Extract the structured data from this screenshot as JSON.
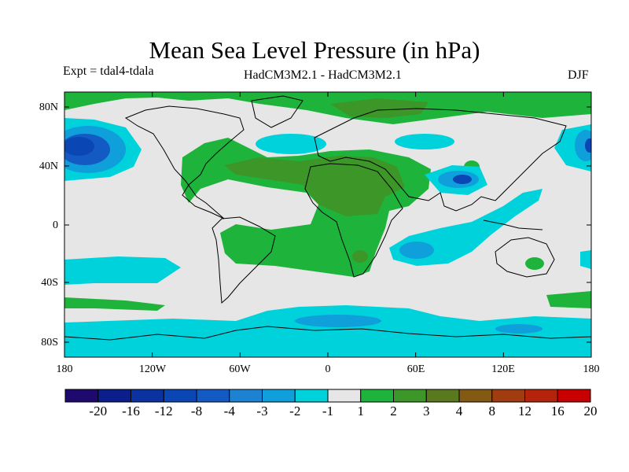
{
  "title": "Mean Sea Level Pressure (in hPa)",
  "experiment": "Expt = tdal4-tdala",
  "models": "HadCM3M2.1 - HadCM3M2.1",
  "season": "DJF",
  "map": {
    "lat_labels": [
      "80N",
      "40N",
      "0",
      "40S",
      "80S"
    ],
    "lon_labels": [
      "180",
      "120W",
      "60W",
      "0",
      "60E",
      "120E",
      "180"
    ],
    "neutral_color": "#e6e6e6",
    "land_outline_color": "#000000"
  },
  "colorbar": {
    "boundaries": [
      "-20",
      "-16",
      "-12",
      "-8",
      "-4",
      "-3",
      "-2",
      "-1",
      "1",
      "2",
      "3",
      "4",
      "8",
      "12",
      "16",
      "20"
    ],
    "colors": [
      "#1e0a6e",
      "#0a1e8c",
      "#0a32a0",
      "#0a46b4",
      "#145ac3",
      "#1e82d2",
      "#0fa0dc",
      "#00d2dc",
      "#e6e6e6",
      "#1eb43c",
      "#3c9628",
      "#5a781e",
      "#825a14",
      "#a03c0f",
      "#b4230a",
      "#c80000"
    ]
  }
}
